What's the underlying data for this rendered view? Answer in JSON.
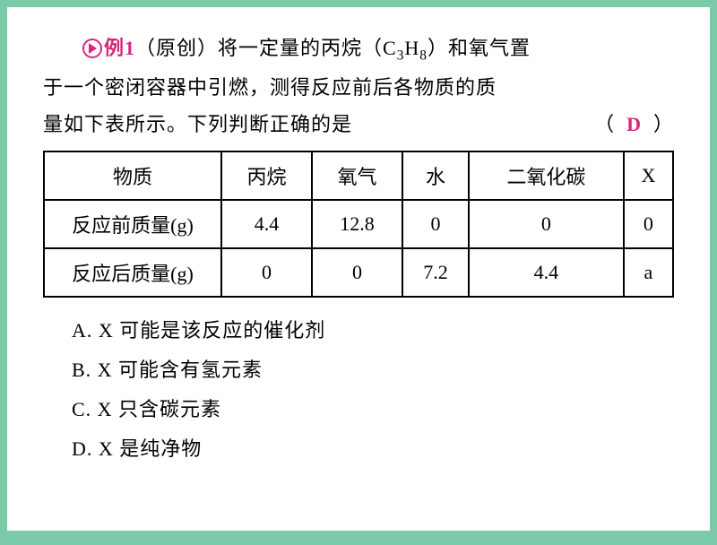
{
  "example_label": "例1",
  "question_prefix": "（原创）将一定量的丙烷（C",
  "c_sub": "3",
  "h_sub": "8",
  "question_mid": "）和氧气置",
  "question_line2": "于一个密闭容器中引燃，测得反应前后各物质的质",
  "question_line3_pre": "量如下表所示。下列判断正确的是",
  "answer_open": "（",
  "answer_letter": "D",
  "answer_close": "）",
  "table": {
    "header": {
      "col0": "物质",
      "col1": "丙烷",
      "col2": "氧气",
      "col3": "水",
      "col4": "二氧化碳",
      "col5": "X"
    },
    "row1": {
      "label": "反应前质量(g)",
      "v1": "4.4",
      "v2": "12.8",
      "v3": "0",
      "v4": "0",
      "v5": "0"
    },
    "row2": {
      "label": "反应后质量(g)",
      "v1": "0",
      "v2": "0",
      "v3": "7.2",
      "v4": "4.4",
      "v5": "a"
    }
  },
  "options": {
    "a": "A. X 可能是该反应的催化剂",
    "b": "B. X 可能含有氢元素",
    "c": "C. X 只含碳元素",
    "d": "D. X 是纯净物"
  },
  "colors": {
    "background": "#7ac9a8",
    "paper": "#ffffff",
    "accent": "#d6277b",
    "text": "#000000"
  }
}
